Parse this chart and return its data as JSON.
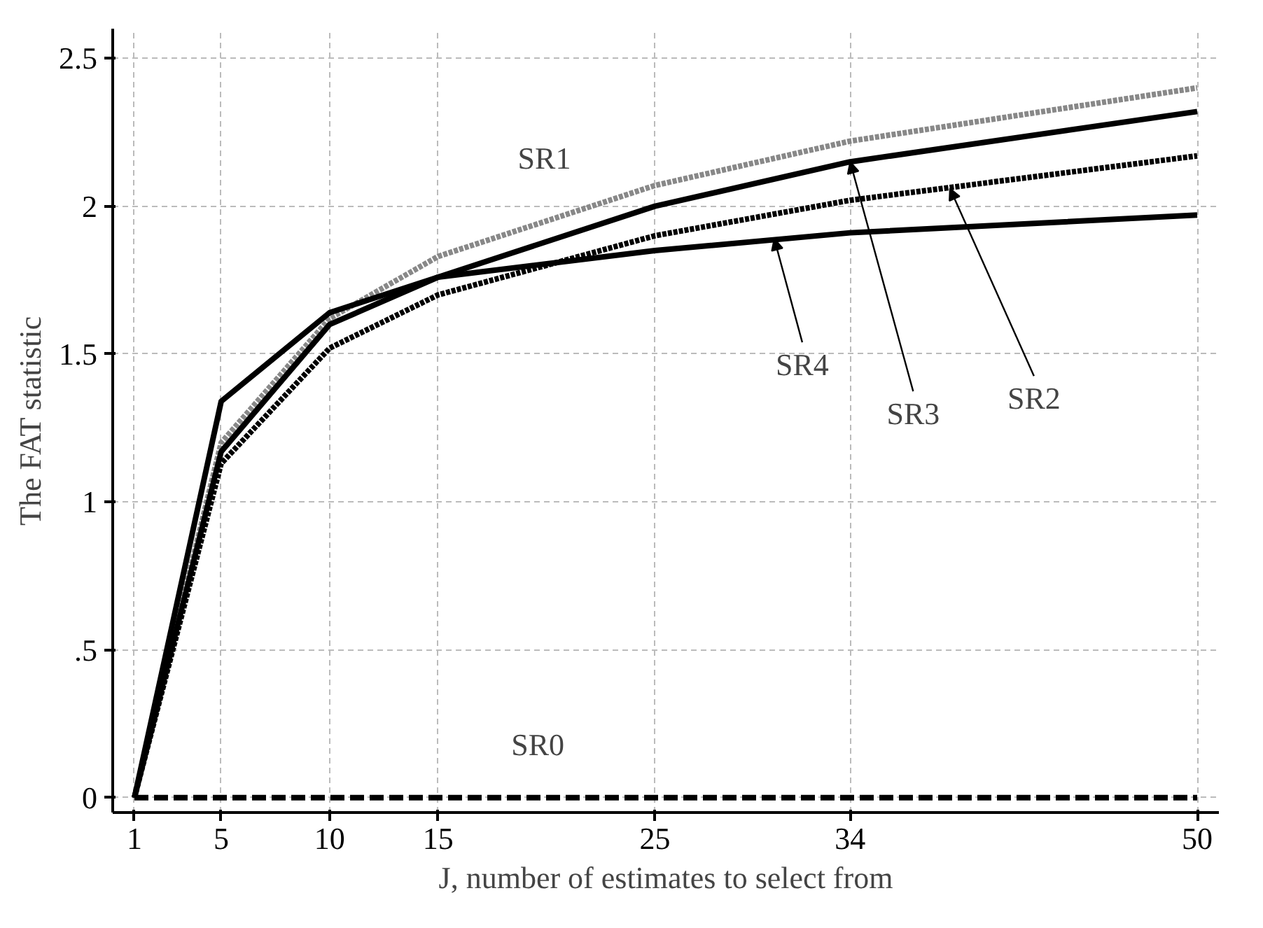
{
  "chart_data": {
    "type": "line",
    "xlabel": "J, number of estimates to select from",
    "ylabel": "The FAT statistic",
    "x": [
      1,
      5,
      10,
      15,
      25,
      34,
      50
    ],
    "series": [
      {
        "color": "#888888",
        "line_style": "dotted",
        "values": [
          0,
          1.2,
          1.62,
          1.83,
          2.07,
          2.22,
          2.4
        ]
      },
      {
        "color": "#000000",
        "line_style": "dotted",
        "values": [
          0,
          1.13,
          1.52,
          1.7,
          1.9,
          2.02,
          2.17
        ]
      },
      {
        "color": "#000000",
        "line_style": "solid",
        "values": [
          0,
          1.17,
          1.6,
          1.76,
          2.0,
          2.15,
          2.32
        ]
      },
      {
        "color": "#000000",
        "line_style": "solid",
        "values": [
          0,
          1.34,
          1.64,
          1.76,
          1.85,
          1.91,
          1.97
        ]
      },
      {
        "color": "#000000",
        "line_style": "dashed",
        "values": [
          0,
          0,
          0,
          0,
          0,
          0,
          0
        ]
      }
    ],
    "annotations": [
      {
        "text": "SR1",
        "x": 19.9,
        "y": 1.95
      },
      {
        "text": "SR4",
        "x": 30.5,
        "y": 1.89
      },
      {
        "text": "SR3",
        "x": 34,
        "y": 2.15
      },
      {
        "text": "SR2",
        "x": 38.6,
        "y": 2.06
      },
      {
        "text": "SR0",
        "x": 19.6,
        "y": 0
      }
    ],
    "xlim": [
      0,
      51
    ],
    "ylim": [
      -0.05,
      2.6
    ],
    "xticks": [
      1,
      5,
      10,
      15,
      25,
      34,
      50
    ],
    "yticks": [
      0,
      {
        "value": 0.5,
        "label": ".5"
      },
      1,
      1.5,
      2,
      2.5
    ],
    "grid": true,
    "marker": "none"
  }
}
